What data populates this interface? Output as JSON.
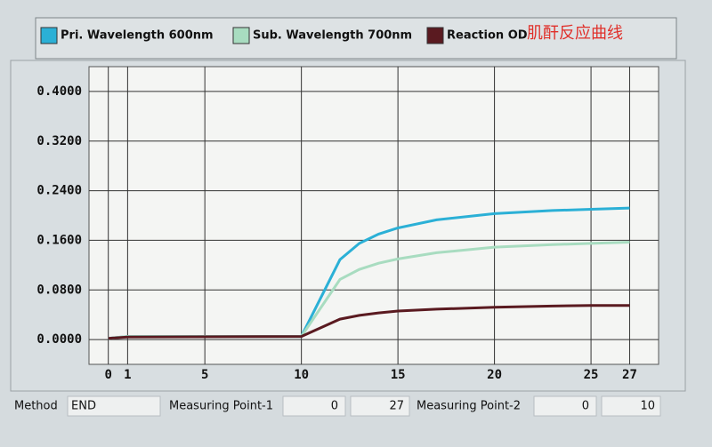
{
  "chart_data": {
    "type": "line",
    "annotation": "肌酐反应曲线",
    "x": [
      0,
      1,
      10,
      12,
      13,
      14,
      15,
      17,
      20,
      23,
      25,
      27
    ],
    "series": [
      {
        "name": "Pri. Wavelength 600nm",
        "color": "#2bb0d6",
        "values": [
          0.002,
          0.005,
          0.005,
          0.129,
          0.155,
          0.17,
          0.18,
          0.193,
          0.203,
          0.208,
          0.21,
          0.212
        ]
      },
      {
        "name": "Sub. Wavelength 700nm",
        "color": "#a8dcc0",
        "values": [
          0.002,
          0.005,
          0.005,
          0.097,
          0.113,
          0.123,
          0.13,
          0.14,
          0.149,
          0.153,
          0.155,
          0.157
        ]
      },
      {
        "name": "Reaction OD",
        "color": "#5a1a20",
        "values": [
          0.002,
          0.004,
          0.005,
          0.033,
          0.039,
          0.043,
          0.046,
          0.049,
          0.052,
          0.054,
          0.055,
          0.055
        ]
      }
    ],
    "xlim": [
      -1,
      28.5
    ],
    "ylim": [
      -0.04,
      0.44
    ],
    "xticks": [
      0,
      1,
      5,
      10,
      15,
      20,
      25,
      27
    ],
    "yticks": [
      {
        "value": 0,
        "label": "0.0000"
      },
      {
        "value": 0.08,
        "label": "0.0800"
      },
      {
        "value": 0.16,
        "label": "0.1600"
      },
      {
        "value": 0.24,
        "label": "0.2400"
      },
      {
        "value": 0.32,
        "label": "0.3200"
      },
      {
        "value": 0.4,
        "label": "0.4000"
      }
    ],
    "grid": true
  },
  "footer": {
    "method_label": "Method",
    "method": "END",
    "points": [
      {
        "label": "Measuring Point-1",
        "from": 0,
        "to": 27
      },
      {
        "label": "Measuring Point-2",
        "from": 0,
        "to": 10
      }
    ]
  }
}
